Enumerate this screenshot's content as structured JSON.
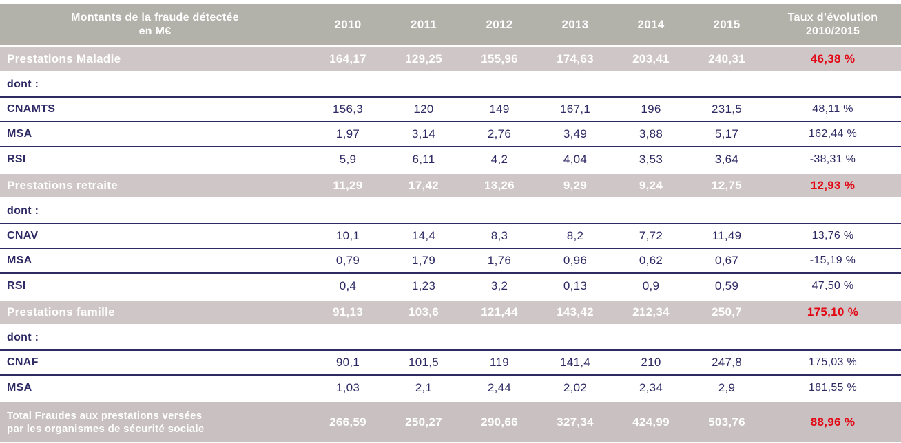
{
  "colors": {
    "header_bg": "#b2b2ab",
    "section_bg": "#cfc6c7",
    "total_bg": "#c8c0c1",
    "text_navy": "#2e2a64",
    "evolution_red": "#e30613",
    "band_text": "#ffffff"
  },
  "table": {
    "header": {
      "title_line1": "Montants de la fraude détectée",
      "title_line2": "en M€",
      "years": [
        "2010",
        "2011",
        "2012",
        "2013",
        "2014",
        "2015"
      ],
      "evolution_line1": "Taux d’évolution",
      "evolution_line2": "2010/2015"
    },
    "rows": [
      {
        "type": "section",
        "label": "Prestations Maladie",
        "values": [
          "164,17",
          "129,25",
          "155,96",
          "174,63",
          "203,41",
          "240,31"
        ],
        "evolution": "46,38 %"
      },
      {
        "type": "dont",
        "label": "dont :",
        "values": [
          "",
          "",
          "",
          "",
          "",
          ""
        ],
        "evolution": ""
      },
      {
        "type": "data",
        "label": "CNAMTS",
        "values": [
          "156,3",
          "120",
          "149",
          "167,1",
          "196",
          "231,5"
        ],
        "evolution": "48,11 %"
      },
      {
        "type": "data",
        "label": "MSA",
        "values": [
          "1,97",
          "3,14",
          "2,76",
          "3,49",
          "3,88",
          "5,17"
        ],
        "evolution": "162,44 %"
      },
      {
        "type": "data",
        "label": "RSI",
        "values": [
          "5,9",
          "6,11",
          "4,2",
          "4,04",
          "3,53",
          "3,64"
        ],
        "evolution": "-38,31 %"
      },
      {
        "type": "section",
        "label": "Prestations retraite",
        "values": [
          "11,29",
          "17,42",
          "13,26",
          "9,29",
          "9,24",
          "12,75"
        ],
        "evolution": "12,93 %"
      },
      {
        "type": "dont",
        "label": "dont :",
        "values": [
          "",
          "",
          "",
          "",
          "",
          ""
        ],
        "evolution": ""
      },
      {
        "type": "data",
        "label": "CNAV",
        "values": [
          "10,1",
          "14,4",
          "8,3",
          "8,2",
          "7,72",
          "11,49"
        ],
        "evolution": "13,76 %"
      },
      {
        "type": "data",
        "label": "MSA",
        "values": [
          "0,79",
          "1,79",
          "1,76",
          "0,96",
          "0,62",
          "0,67"
        ],
        "evolution": "-15,19 %"
      },
      {
        "type": "data",
        "label": "RSI",
        "values": [
          "0,4",
          "1,23",
          "3,2",
          "0,13",
          "0,9",
          "0,59"
        ],
        "evolution": "47,50 %"
      },
      {
        "type": "section",
        "label": "Prestations famille",
        "values": [
          "91,13",
          "103,6",
          "121,44",
          "143,42",
          "212,34",
          "250,7"
        ],
        "evolution": "175,10 %"
      },
      {
        "type": "dont",
        "label": "dont :",
        "values": [
          "",
          "",
          "",
          "",
          "",
          ""
        ],
        "evolution": ""
      },
      {
        "type": "data",
        "label": "CNAF",
        "values": [
          "90,1",
          "101,5",
          "119",
          "141,4",
          "210",
          "247,8"
        ],
        "evolution": "175,03 %"
      },
      {
        "type": "data",
        "label": "MSA",
        "values": [
          "1,03",
          "2,1",
          "2,44",
          "2,02",
          "2,34",
          "2,9"
        ],
        "evolution": "181,55 %"
      },
      {
        "type": "total",
        "label_line1": "Total Fraudes aux prestations versées",
        "label_line2": "par les organismes de sécurité sociale",
        "values": [
          "266,59",
          "250,27",
          "290,66",
          "327,34",
          "424,99",
          "503,76"
        ],
        "evolution": "88,96 %"
      }
    ]
  }
}
